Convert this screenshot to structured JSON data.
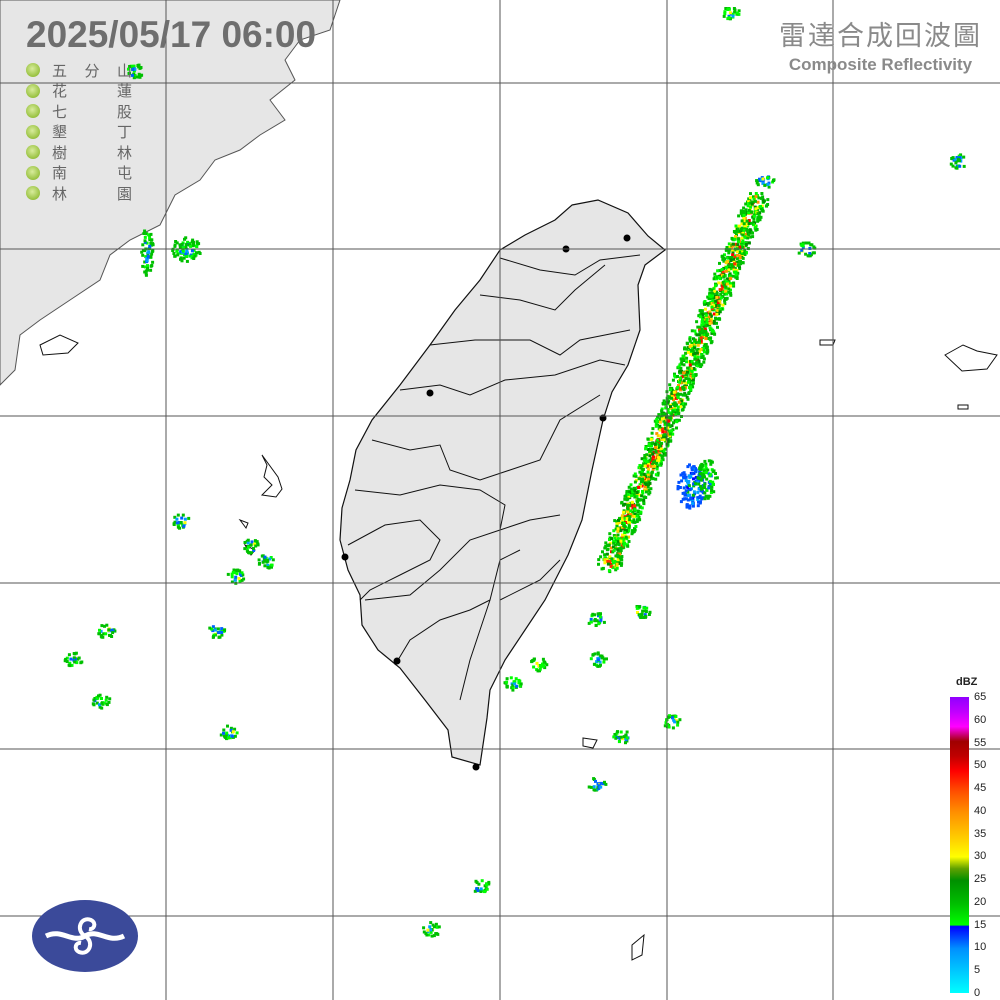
{
  "header": {
    "timestamp": "2025/05/17  06:00",
    "product_zh": "雷達合成回波圖",
    "product_en": "Composite Reflectivity"
  },
  "stations": [
    {
      "a": "五",
      "b": "分",
      "c": "山"
    },
    {
      "a": "花",
      "b": "",
      "c": "蓮"
    },
    {
      "a": "七",
      "b": "",
      "c": "股"
    },
    {
      "a": "墾",
      "b": "",
      "c": "丁"
    },
    {
      "a": "樹",
      "b": "",
      "c": "林"
    },
    {
      "a": "南",
      "b": "",
      "c": "屯"
    },
    {
      "a": "林",
      "b": "",
      "c": "園"
    }
  ],
  "station_marker_color": "#98c140",
  "colorbar": {
    "unit": "dBZ",
    "ticks": [
      "0",
      "5",
      "10",
      "15",
      "20",
      "25",
      "30",
      "35",
      "40",
      "45",
      "50",
      "55",
      "60",
      "65"
    ],
    "range": [
      0,
      65
    ]
  },
  "colors": {
    "land": "#e6e6e6",
    "sea": "#ffffff",
    "grid": "#555555",
    "logo": "#3b4a9a"
  },
  "logo": "Central Weather Administration emblem"
}
